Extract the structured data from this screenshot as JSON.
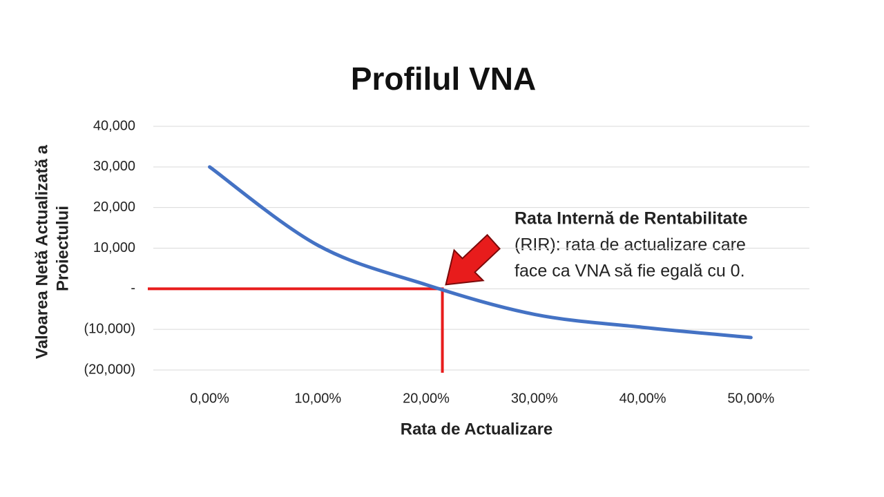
{
  "chart_data": {
    "type": "line",
    "title": "Profilul VNA",
    "xlabel": "Rata de Actualizare",
    "ylabel": [
      "Valoarea Netă Actualizată a",
      "Proiectului"
    ],
    "x": [
      0,
      10,
      20,
      30,
      40,
      50
    ],
    "series": [
      {
        "name": "VNA",
        "color": "#4472c4",
        "values": [
          30000,
          10700,
          1000,
          -6300,
          -9500,
          -12000
        ]
      }
    ],
    "xlim": [
      -5.2,
      55.4
    ],
    "xticks": [
      {
        "value": 0,
        "label": "0,00%"
      },
      {
        "value": 10,
        "label": "10,00%"
      },
      {
        "value": 20,
        "label": "20,00%"
      },
      {
        "value": 30,
        "label": "30,00%"
      },
      {
        "value": 40,
        "label": "40,00%"
      },
      {
        "value": 50,
        "label": "50,00%"
      }
    ],
    "ylim": [
      -20000,
      40000
    ],
    "yticks": [
      {
        "value": -20000,
        "label": "(20,000)"
      },
      {
        "value": -10000,
        "label": "(10,000)"
      },
      {
        "value": 0,
        "label": "-"
      },
      {
        "value": 10000,
        "label": "10,000"
      },
      {
        "value": 20000,
        "label": "20,000"
      },
      {
        "value": 30000,
        "label": "30,000"
      },
      {
        "value": 40000,
        "label": "40,000"
      }
    ],
    "grid": true,
    "irr": 21.5,
    "irr_color": "#e81c1c",
    "annotation": {
      "title": "Rata Internă de Rentabilitate",
      "lines": [
        "(RIR):  rata de actualizare care",
        "face ca VNA să fie egală cu 0."
      ]
    }
  }
}
